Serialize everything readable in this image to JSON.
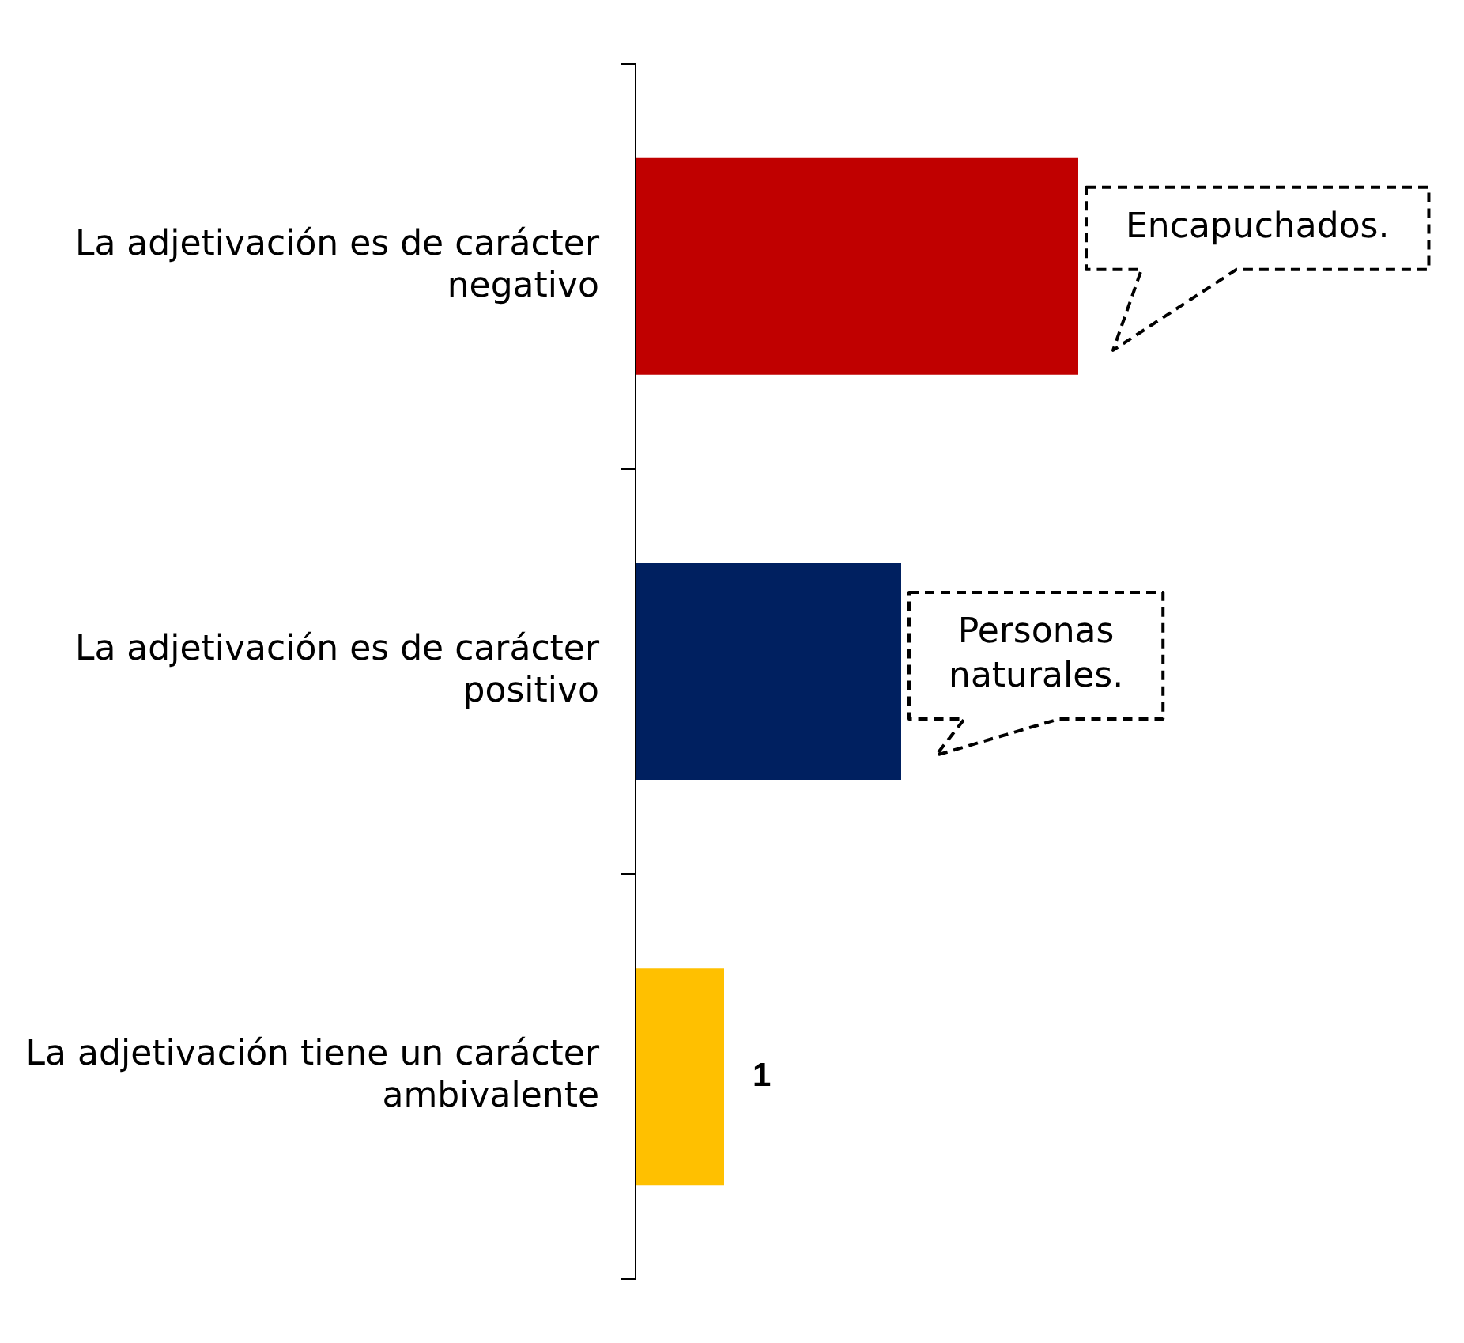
{
  "chart_data": {
    "type": "bar",
    "orientation": "horizontal",
    "tick_labels": "y",
    "categories": [
      "La adjetivación es de carácter negativo",
      "La adjetivación es de carácter positivo",
      "La adjetivación tiene un carácter ambivalente"
    ],
    "values": [
      5,
      3,
      1
    ],
    "colors": [
      "#c00000",
      "#002060",
      "#ffc000"
    ],
    "value_labels": [
      null,
      null,
      "1"
    ],
    "annotations": [
      {
        "text": "Encapuchados.",
        "x": 5,
        "y": "La adjetivación es de carácter negativo"
      },
      {
        "text": "Personas naturales.",
        "x": 3,
        "y": "La adjetivación es de carácter positivo"
      }
    ]
  }
}
